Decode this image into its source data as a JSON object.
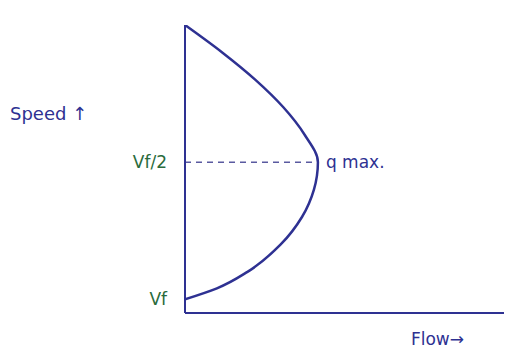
{
  "chart_data": {
    "type": "line",
    "x_label": "Flow→",
    "y_label": "Speed ↑",
    "x": [
      0,
      0.28,
      0.53,
      0.74,
      0.9,
      1.0,
      0.97,
      0.88,
      0.72,
      0.47,
      0.24,
      0
    ],
    "values": [
      0,
      0.1,
      0.2,
      0.3,
      0.4,
      0.5,
      0.6,
      0.7,
      0.8,
      0.9,
      0.96,
      1.0
    ],
    "color": "#2e3192",
    "line_style": "solid",
    "xlim": [
      0,
      2.4
    ],
    "xticks": [],
    "ylim": [
      0,
      1.05
    ],
    "yticks": [
      {
        "value": 0.5,
        "label": "Vf/2"
      },
      {
        "value": 1.0,
        "label": "Vf"
      }
    ],
    "tick_labels": "y",
    "grid": false,
    "annotations": [
      {
        "text": "q max.",
        "x": 1.0,
        "y": 0.5
      }
    ]
  }
}
